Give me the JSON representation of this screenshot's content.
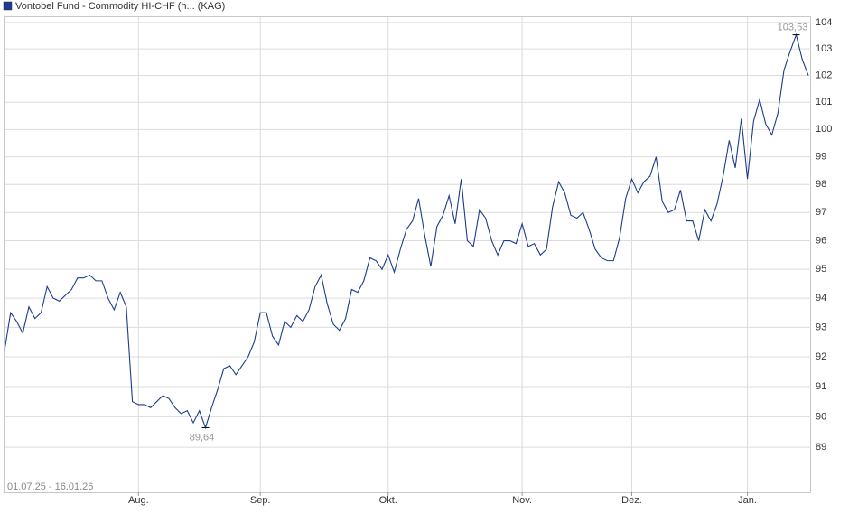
{
  "chart_data": {
    "type": "line",
    "legend_label": "Vontobel Fund - Commodity HI-CHF (h... (KAG)",
    "date_range": "01.07.25 - 16.01.26",
    "color": "#1a3d8f",
    "log_scale": true,
    "grid": true,
    "values": [
      92.2,
      93.5,
      93.2,
      92.8,
      93.7,
      93.3,
      93.5,
      94.4,
      94.0,
      93.9,
      94.1,
      94.3,
      94.7,
      94.7,
      94.8,
      94.6,
      94.6,
      94.0,
      93.6,
      94.2,
      93.7,
      90.5,
      90.4,
      90.4,
      90.3,
      90.5,
      90.7,
      90.6,
      90.3,
      90.1,
      90.2,
      89.8,
      90.2,
      89.64,
      90.3,
      90.9,
      91.6,
      91.7,
      91.4,
      91.7,
      92.0,
      92.5,
      93.5,
      93.5,
      92.7,
      92.4,
      93.2,
      93.0,
      93.4,
      93.2,
      93.6,
      94.4,
      94.8,
      93.8,
      93.1,
      92.9,
      93.3,
      94.3,
      94.2,
      94.6,
      95.4,
      95.3,
      95.0,
      95.5,
      94.9,
      95.7,
      96.4,
      96.7,
      97.5,
      96.2,
      95.1,
      96.5,
      96.9,
      97.6,
      96.6,
      98.2,
      96.0,
      95.8,
      97.1,
      96.8,
      96.0,
      95.5,
      96.0,
      96.0,
      95.9,
      96.6,
      95.8,
      95.9,
      95.5,
      95.7,
      97.2,
      98.1,
      97.7,
      96.9,
      96.8,
      97.0,
      96.4,
      95.7,
      95.4,
      95.3,
      95.3,
      96.1,
      97.5,
      98.2,
      97.7,
      98.1,
      98.3,
      99.0,
      97.4,
      97.0,
      97.1,
      97.8,
      96.7,
      96.7,
      96.0,
      97.1,
      96.7,
      97.3,
      98.3,
      99.6,
      98.6,
      100.4,
      98.2,
      100.3,
      101.1,
      100.2,
      99.8,
      100.6,
      102.2,
      102.9,
      103.53,
      102.6,
      102.0
    ],
    "annotations": [
      {
        "value": 103.53,
        "label": "103,53"
      },
      {
        "value": 89.64,
        "label": "89,64"
      }
    ],
    "xlim": [
      0,
      132
    ],
    "xticks": [
      {
        "value": 22,
        "label": "Aug."
      },
      {
        "value": 42,
        "label": "Sep."
      },
      {
        "value": 63,
        "label": "Okt."
      },
      {
        "value": 85,
        "label": "Nov."
      },
      {
        "value": 103,
        "label": "Dez."
      },
      {
        "value": 122,
        "label": "Jan."
      }
    ],
    "ylim": [
      87.54,
      104.17
    ],
    "yticks": [
      89,
      90,
      91,
      92,
      93,
      94,
      95,
      96,
      97,
      98,
      99,
      100,
      101,
      102,
      103,
      104
    ]
  }
}
